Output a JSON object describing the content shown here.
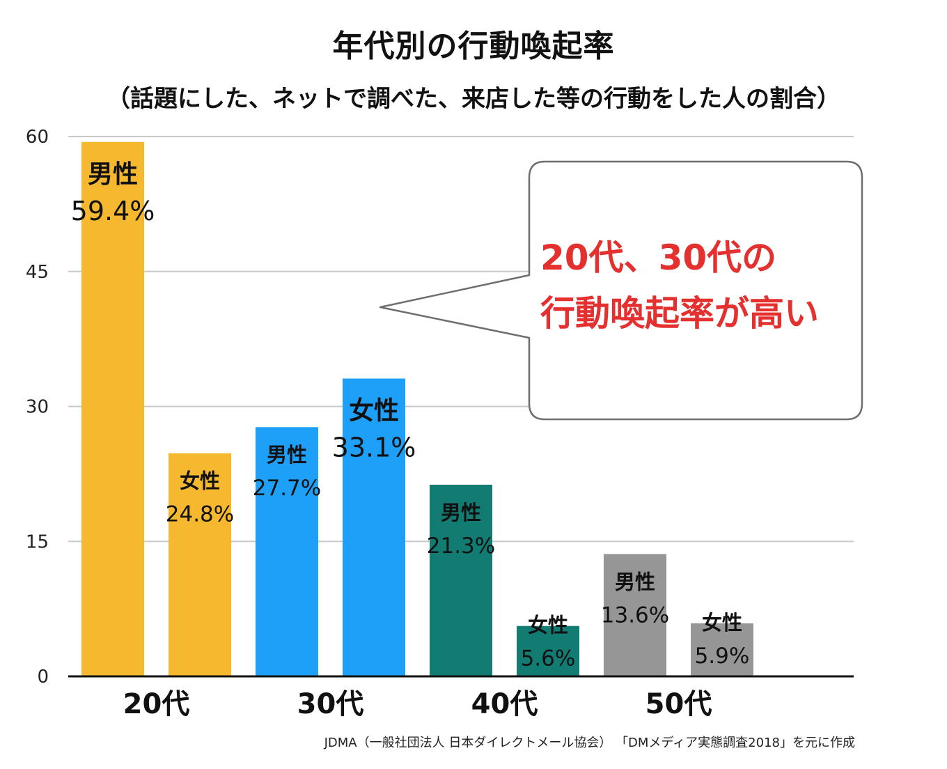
{
  "title": "年代別の行動喚起率",
  "subtitle": "（話題にした、ネットで調べた、来店した等の行動をした人の割合）",
  "callout": {
    "line1": "20代、30代の",
    "line2": "行動喚起率が高い"
  },
  "source": "JDMA（一般社団法人 日本ダイレクトメール協会） 「DMメディア実態調査2018」を元に作成",
  "colors": {
    "20代": "#f5b82e",
    "30代": "#1fa0f8",
    "40代": "#137c72",
    "50代": "#969696",
    "callout_text": "#e53030",
    "grid": "#c8c8c8"
  },
  "chart_data": {
    "type": "bar",
    "title": "年代別の行動喚起率",
    "ylim": [
      0,
      60
    ],
    "yticks": [
      0,
      15,
      30,
      45,
      60
    ],
    "grid": true,
    "categories": [
      "20代",
      "30代",
      "40代",
      "50代"
    ],
    "bars": [
      {
        "group": "20代",
        "gender": "男性",
        "value": 59.4,
        "label": "59.4%"
      },
      {
        "group": "20代",
        "gender": "女性",
        "value": 24.8,
        "label": "24.8%"
      },
      {
        "group": "30代",
        "gender": "男性",
        "value": 27.7,
        "label": "27.7%"
      },
      {
        "group": "30代",
        "gender": "女性",
        "value": 33.1,
        "label": "33.1%"
      },
      {
        "group": "40代",
        "gender": "男性",
        "value": 21.3,
        "label": "21.3%"
      },
      {
        "group": "40代",
        "gender": "女性",
        "value": 5.6,
        "label": "5.6%"
      },
      {
        "group": "50代",
        "gender": "男性",
        "value": 13.6,
        "label": "13.6%"
      },
      {
        "group": "50代",
        "gender": "女性",
        "value": 5.9,
        "label": "5.9%"
      }
    ]
  }
}
